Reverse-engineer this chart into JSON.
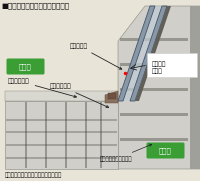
{
  "title": "■復層ガラスサッシの構造断面図",
  "title_fontsize": 5.2,
  "bg_color": "#e8e4d8",
  "labels": {
    "fukusou_garasu": "複層ガラス",
    "kanso_kuki": "乾燥空気\n乾燥剤",
    "garasu_liner": "ガスライナー",
    "bousui_packing": "防水パッキン",
    "shitsugawa": "室外側",
    "shitsunai": "室内側",
    "high_plastic": "高対候性プラスチック",
    "bottom_text": "断熱性・耐久性が大幅に向上します。"
  },
  "label_fontsize": 4.3,
  "shitsugawa_bg": "#3a9e35",
  "shitsunai_bg": "#3a9e35",
  "frame_bg": "#e8e4d8",
  "sash_light": "#d0cfca",
  "sash_mid": "#a0a09a",
  "sash_dark": "#606058",
  "sash_darker": "#404038",
  "glass1": "#8898a8",
  "glass2": "#9aa8b4",
  "gap_color": "#c0ccd4",
  "wall_color": "#b0b0b0",
  "rubber_color": "#8a7060"
}
